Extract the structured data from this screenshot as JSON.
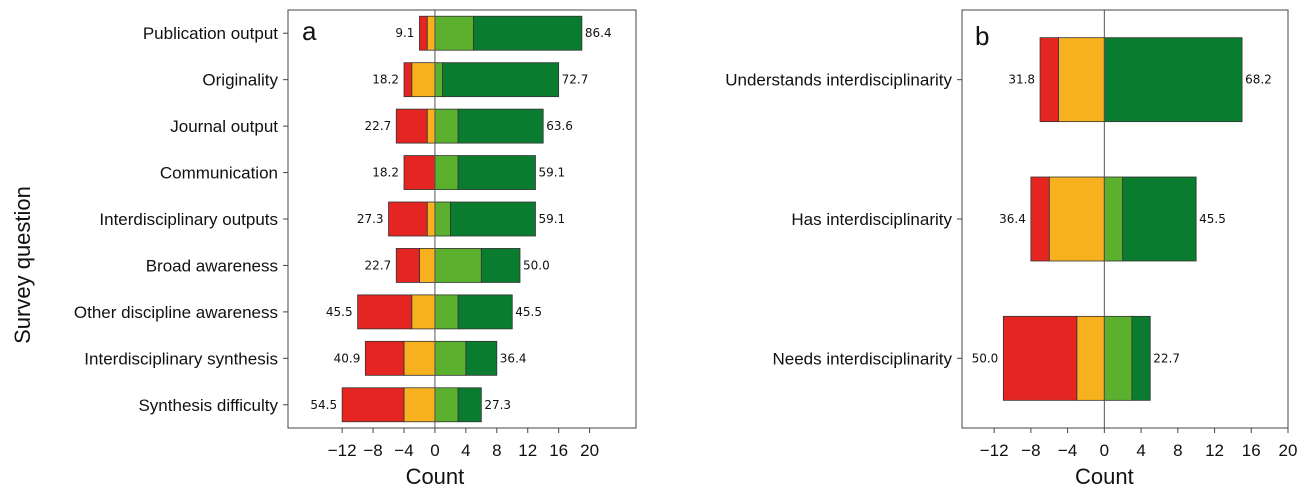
{
  "colors": {
    "strongly_negative": "#e52521",
    "negative": "#f7b11e",
    "positive": "#5bb02d",
    "strongly_positive": "#0a7c2f"
  },
  "shared": {
    "ylabel": "Survey question"
  },
  "chart_data": [
    {
      "panel": "a",
      "type": "bar",
      "orientation": "horizontal",
      "stacked": "diverging",
      "xlabel": "Count",
      "xlim": [
        -19,
        26
      ],
      "xticks": [
        -12,
        -8,
        -4,
        0,
        4,
        8,
        12,
        16,
        20
      ],
      "xtick_labels": [
        "−12",
        "−8",
        "−4",
        "0",
        "4",
        "8",
        "12",
        "16",
        "20"
      ],
      "categories": [
        "Publication output",
        "Originality",
        "Journal output",
        "Communication",
        "Interdisciplinary outputs",
        "Broad awareness",
        "Other discipline awareness",
        "Interdisciplinary synthesis",
        "Synthesis difficulty"
      ],
      "series": [
        {
          "values": [
            -1,
            -1,
            -4,
            -4,
            -5,
            -3,
            -7,
            -5,
            -8
          ]
        },
        {
          "values": [
            -1,
            -3,
            -1,
            0,
            -1,
            -2,
            -3,
            -4,
            -4
          ]
        },
        {
          "values": [
            5,
            1,
            3,
            3,
            2,
            6,
            3,
            4,
            3
          ]
        },
        {
          "values": [
            14,
            15,
            11,
            10,
            11,
            5,
            7,
            4,
            3
          ]
        }
      ],
      "left_labels": [
        "9.1",
        "18.2",
        "22.7",
        "18.2",
        "27.3",
        "22.7",
        "45.5",
        "40.9",
        "54.5"
      ],
      "right_labels": [
        "86.4",
        "72.7",
        "63.6",
        "59.1",
        "59.1",
        "50.0",
        "45.5",
        "36.4",
        "27.3"
      ]
    },
    {
      "panel": "b",
      "type": "bar",
      "orientation": "horizontal",
      "stacked": "diverging",
      "xlabel": "Count",
      "xlim": [
        -15.5,
        20
      ],
      "xticks": [
        -12,
        -8,
        -4,
        0,
        4,
        8,
        12,
        16,
        20
      ],
      "xtick_labels": [
        "−12",
        "−8",
        "−4",
        "0",
        "4",
        "8",
        "12",
        "16",
        "20"
      ],
      "categories": [
        "Understands interdisciplinarity",
        "Has interdisciplinarity",
        "Needs interdisciplinarity"
      ],
      "series": [
        {
          "values": [
            -2,
            -2,
            -8
          ]
        },
        {
          "values": [
            -5,
            -6,
            -3
          ]
        },
        {
          "values": [
            0,
            2,
            3
          ]
        },
        {
          "values": [
            15,
            8,
            2
          ]
        }
      ],
      "left_labels": [
        "31.8",
        "36.4",
        "50.0"
      ],
      "right_labels": [
        "68.2",
        "45.5",
        "22.7"
      ]
    }
  ]
}
